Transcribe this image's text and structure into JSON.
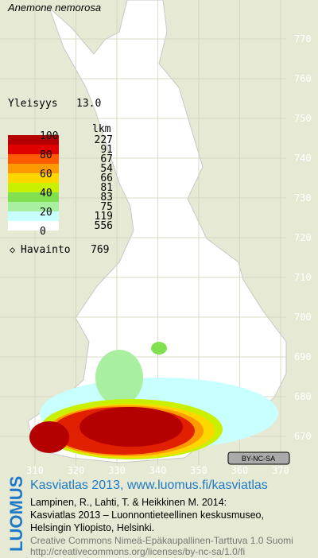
{
  "title": "Anemone nemorosa",
  "frequency": {
    "label": "Yleisyys",
    "value": "13.0"
  },
  "legend": {
    "unit": "lkm",
    "scale_labels": [
      "100",
      "80",
      "60",
      "40",
      "20",
      "0"
    ],
    "counts": [
      "227",
      "91",
      "67",
      "54",
      "66",
      "81",
      "83",
      "75",
      "119",
      "556"
    ]
  },
  "observation": {
    "label": "Havainto",
    "count": "769"
  },
  "grid": {
    "northing": [
      "770",
      "760",
      "750",
      "740",
      "730",
      "720",
      "710",
      "700",
      "690",
      "680",
      "670"
    ],
    "easting": [
      "310",
      "320",
      "330",
      "340",
      "350",
      "360",
      "370"
    ]
  },
  "license_badge": "BY-NC-SA",
  "footer": {
    "logo": "LUOMUS",
    "site": "Kasviatlas 2013, www.luomus.fi/kasviatlas",
    "citation": [
      "Lampinen, R., Lahti, T. & Heikkinen M. 2014:",
      "Kasviatlas 2013 – Luonnontieteellinen keskusmuseo,",
      "Helsingin Yliopisto, Helsinki."
    ],
    "license": [
      "Creative Commons Nimeä-Epäkaupallinen-Tarttuva 1.0 Suomi",
      "http://creativecommons.org/licenses/by-nc-sa/1.0/fi"
    ]
  }
}
